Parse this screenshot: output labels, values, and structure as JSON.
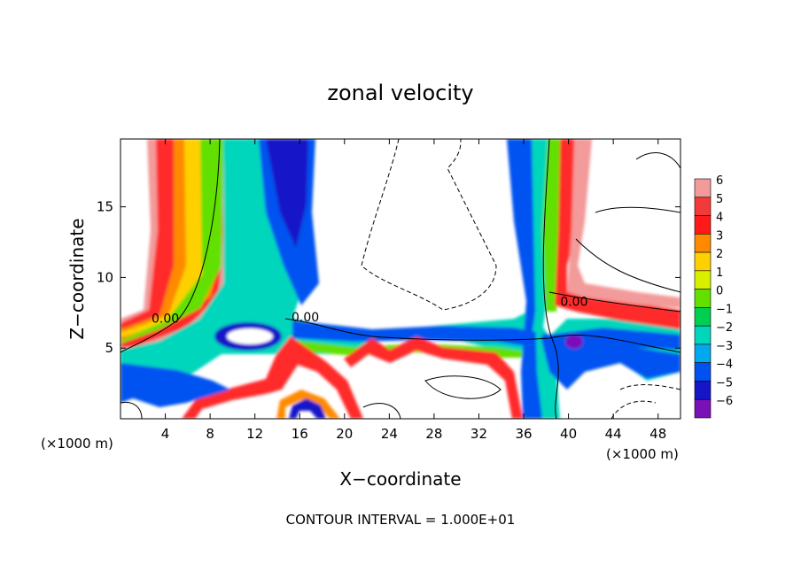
{
  "chart_data": {
    "type": "heatmap",
    "title": "zonal velocity",
    "xlabel": "X−coordinate",
    "ylabel": "Z−coordinate",
    "x_unit_left": "(×1000 m)",
    "x_unit_right": "(×1000 m)",
    "footer": "CONTOUR INTERVAL = 1.000E+01",
    "x_ticks": [
      "4",
      "8",
      "12",
      "16",
      "20",
      "24",
      "28",
      "32",
      "36",
      "40",
      "44",
      "48"
    ],
    "x_tick_values": [
      4,
      8,
      12,
      16,
      20,
      24,
      28,
      32,
      36,
      40,
      44,
      48
    ],
    "y_ticks": [
      "5",
      "10",
      "15"
    ],
    "y_tick_values": [
      5,
      10,
      15
    ],
    "xlim": [
      0,
      50
    ],
    "ylim": [
      0,
      19.8
    ],
    "colorbar": {
      "labels": [
        "6",
        "5",
        "4",
        "3",
        "2",
        "1",
        "0",
        "−1",
        "−2",
        "−3",
        "−4",
        "−5",
        "−6"
      ],
      "colors": [
        "#f39a9a",
        "#f23a3a",
        "#ff1a1a",
        "#ff8a00",
        "#ffd000",
        "#d8ef00",
        "#62e000",
        "#00cf52",
        "#00d6bc",
        "#00a8f0",
        "#0052f0",
        "#1616c8",
        "#7a10b8"
      ]
    },
    "contour_labels": [
      {
        "text": "0.00",
        "x": 4.0,
        "y": 6.8
      },
      {
        "text": "0.00",
        "x": 16.5,
        "y": 6.9
      },
      {
        "text": "0.00",
        "x": 40.5,
        "y": 8.0
      }
    ]
  }
}
